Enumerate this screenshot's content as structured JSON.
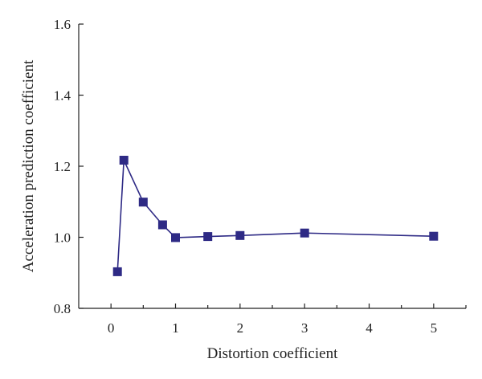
{
  "chart_data": {
    "type": "line",
    "title": "",
    "xlabel": "Distortion coefficient",
    "ylabel": "Acceleration prediction coefficient",
    "xlim": [
      -0.5,
      5.5
    ],
    "ylim": [
      0.8,
      1.6
    ],
    "xticks": [
      0,
      1,
      2,
      3,
      4,
      5
    ],
    "xtick_labels": [
      "0",
      "1",
      "2",
      "3",
      "4",
      "5"
    ],
    "yticks": [
      0.8,
      1.0,
      1.2,
      1.4,
      1.6
    ],
    "ytick_labels": [
      "0.8",
      "1.0",
      "1.2",
      "1.4",
      "1.6"
    ],
    "grid": false,
    "legend": "none",
    "series": [
      {
        "color": "#2e2a85",
        "marker": "square",
        "x": [
          0.1,
          0.2,
          0.5,
          0.8,
          1.0,
          1.5,
          2.0,
          3.0,
          5.0
        ],
        "y": [
          0.903,
          1.217,
          1.099,
          1.035,
          0.999,
          1.002,
          1.005,
          1.012,
          1.003
        ]
      }
    ]
  }
}
